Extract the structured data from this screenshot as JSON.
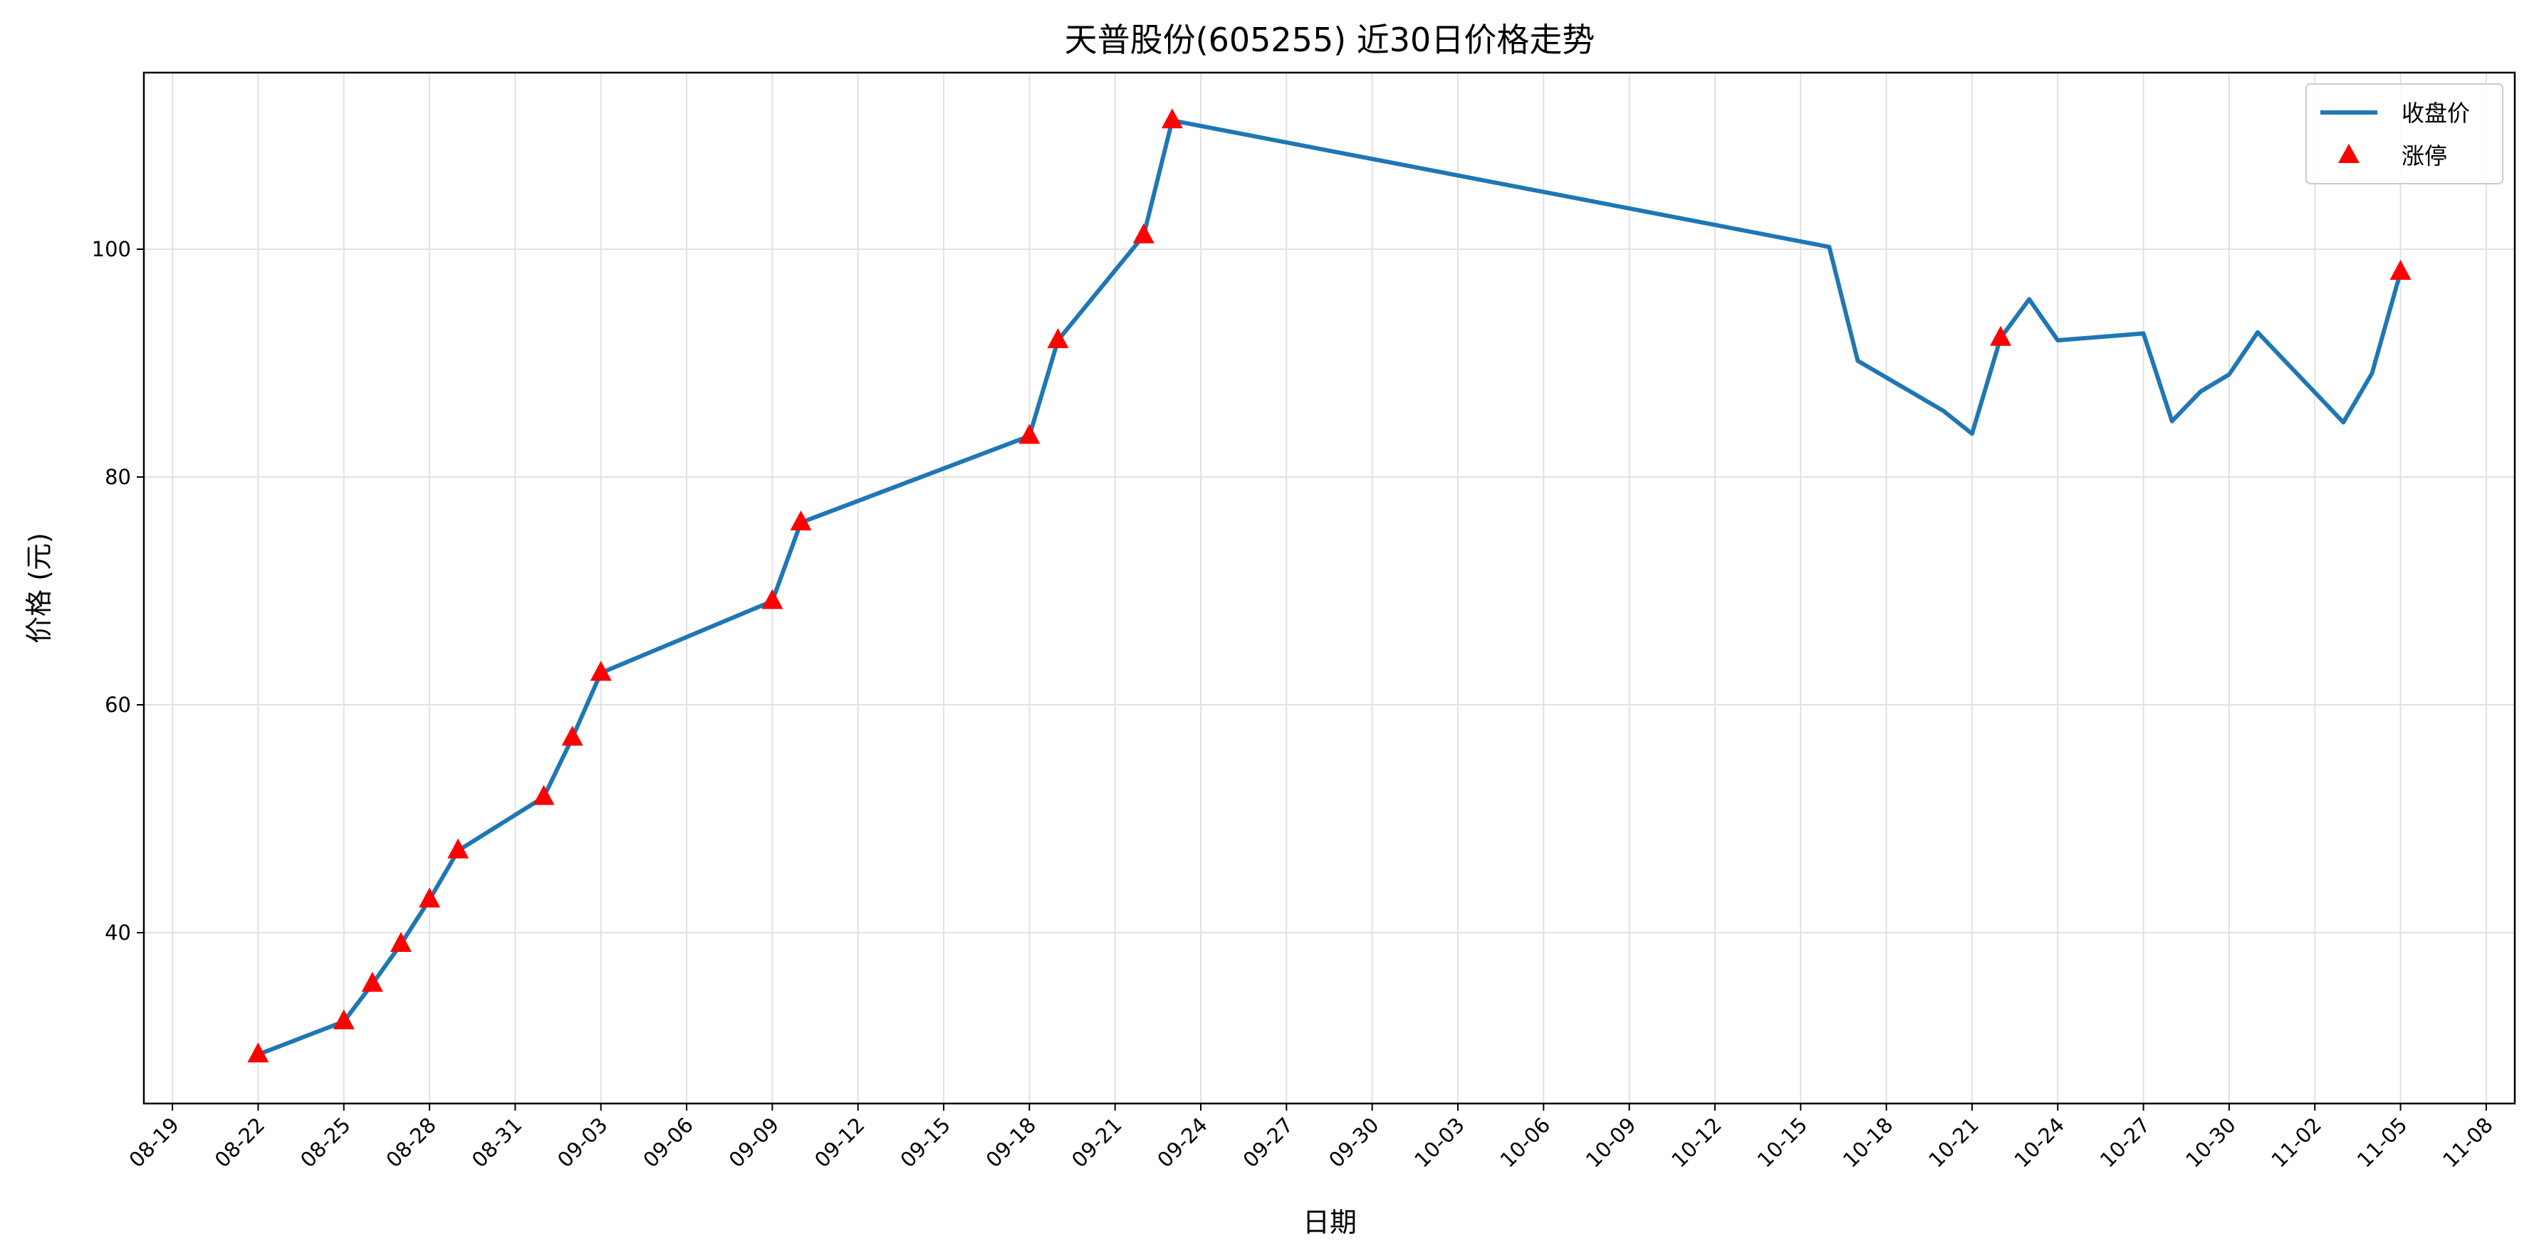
{
  "chart_data": {
    "type": "line",
    "title": "天普股份(605255) 近30日价格走势",
    "xlabel": "日期",
    "ylabel": "价格 (元)",
    "x_axis_type": "date",
    "year": 2025,
    "xlim": [
      "2025-08-18",
      "2025-11-09"
    ],
    "ylim": [
      25,
      115.5
    ],
    "y_ticks": [
      40,
      60,
      80,
      100
    ],
    "x_ticks": [
      "08-19",
      "08-22",
      "08-25",
      "08-28",
      "08-31",
      "09-03",
      "09-06",
      "09-09",
      "09-12",
      "09-15",
      "09-18",
      "09-21",
      "09-24",
      "09-27",
      "09-30",
      "10-03",
      "10-06",
      "10-09",
      "10-12",
      "10-15",
      "10-18",
      "10-21",
      "10-24",
      "10-27",
      "10-30",
      "11-02",
      "11-05",
      "11-08"
    ],
    "grid": true,
    "legend": {
      "position": "top-right",
      "entries": [
        "收盘价",
        "涨停"
      ]
    },
    "colors": {
      "line": "#1f77b4",
      "marker": "#ff0000"
    },
    "series": [
      {
        "name": "收盘价",
        "type": "line",
        "points": [
          [
            "2025-08-22",
            29.3
          ],
          [
            "2025-08-25",
            32.2
          ],
          [
            "2025-08-26",
            35.5
          ],
          [
            "2025-08-27",
            39.0
          ],
          [
            "2025-08-28",
            42.9
          ],
          [
            "2025-08-29",
            47.2
          ],
          [
            "2025-09-01",
            51.9
          ],
          [
            "2025-09-02",
            57.1
          ],
          [
            "2025-09-03",
            62.8
          ],
          [
            "2025-09-09",
            69.1
          ],
          [
            "2025-09-10",
            76.0
          ],
          [
            "2025-09-18",
            83.6
          ],
          [
            "2025-09-19",
            92.0
          ],
          [
            "2025-09-22",
            101.2
          ],
          [
            "2025-09-23",
            111.3
          ],
          [
            "2025-10-16",
            100.2
          ],
          [
            "2025-10-17",
            90.2
          ],
          [
            "2025-10-20",
            85.8
          ],
          [
            "2025-10-21",
            83.8
          ],
          [
            "2025-10-22",
            92.2
          ],
          [
            "2025-10-23",
            95.6
          ],
          [
            "2025-10-24",
            92.0
          ],
          [
            "2025-10-27",
            92.6
          ],
          [
            "2025-10-28",
            84.9
          ],
          [
            "2025-10-29",
            87.5
          ],
          [
            "2025-10-30",
            89.0
          ],
          [
            "2025-10-31",
            92.7
          ],
          [
            "2025-11-03",
            84.8
          ],
          [
            "2025-11-04",
            89.1
          ],
          [
            "2025-11-05",
            98.0
          ]
        ]
      },
      {
        "name": "涨停",
        "type": "scatter",
        "marker": "triangle",
        "points": [
          [
            "2025-08-22",
            29.3
          ],
          [
            "2025-08-25",
            32.2
          ],
          [
            "2025-08-26",
            35.5
          ],
          [
            "2025-08-27",
            39.0
          ],
          [
            "2025-08-28",
            42.9
          ],
          [
            "2025-08-29",
            47.2
          ],
          [
            "2025-09-01",
            51.9
          ],
          [
            "2025-09-02",
            57.1
          ],
          [
            "2025-09-03",
            62.8
          ],
          [
            "2025-09-09",
            69.1
          ],
          [
            "2025-09-10",
            76.0
          ],
          [
            "2025-09-18",
            83.6
          ],
          [
            "2025-09-19",
            92.0
          ],
          [
            "2025-09-22",
            101.2
          ],
          [
            "2025-09-23",
            111.3
          ],
          [
            "2025-10-22",
            92.2
          ],
          [
            "2025-11-05",
            98.0
          ]
        ]
      }
    ]
  }
}
